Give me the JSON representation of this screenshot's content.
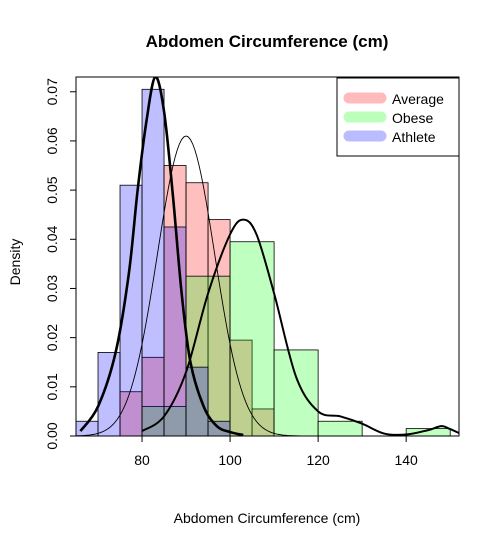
{
  "chart_data": {
    "type": "histogram",
    "title": "Abdomen Circumference (cm)",
    "xlabel": "Abdomen Circumference (cm)",
    "ylabel": "Density",
    "xlim": [
      65,
      152
    ],
    "ylim": [
      0,
      0.073
    ],
    "xticks": [
      80,
      100,
      120,
      140
    ],
    "yticks": [
      0.0,
      0.01,
      0.02,
      0.03,
      0.04,
      0.05,
      0.06,
      0.07
    ],
    "ytick_labels": [
      "0.00",
      "0.01",
      "0.02",
      "0.03",
      "0.04",
      "0.05",
      "0.06",
      "0.07"
    ],
    "legend_position": "top-right",
    "series": [
      {
        "name": "Average",
        "color": "#FF000040",
        "legend_color": "#FFBBBB",
        "bins": [
          {
            "x0": 75,
            "x1": 80,
            "density": 0.009
          },
          {
            "x0": 80,
            "x1": 85,
            "density": 0.016
          },
          {
            "x0": 85,
            "x1": 90,
            "density": 0.055
          },
          {
            "x0": 90,
            "x1": 95,
            "density": 0.0515
          },
          {
            "x0": 95,
            "x1": 100,
            "density": 0.044
          },
          {
            "x0": 100,
            "x1": 105,
            "density": 0.0195
          },
          {
            "x0": 105,
            "x1": 110,
            "density": 0.0055
          }
        ],
        "curve": {
          "type": "normal",
          "mean": 90,
          "sd": 6.5,
          "peak": 0.061
        }
      },
      {
        "name": "Obese",
        "color": "#00FF0040",
        "legend_color": "#BBFFBB",
        "bins": [
          {
            "x0": 80,
            "x1": 90,
            "density": 0.006
          },
          {
            "x0": 90,
            "x1": 100,
            "density": 0.0325
          },
          {
            "x0": 100,
            "x1": 110,
            "density": 0.0395
          },
          {
            "x0": 110,
            "x1": 120,
            "density": 0.0175
          },
          {
            "x0": 120,
            "x1": 130,
            "density": 0.003
          },
          {
            "x0": 130,
            "x1": 140,
            "density": 0.0
          },
          {
            "x0": 140,
            "x1": 150,
            "density": 0.0015
          }
        ],
        "curve": {
          "type": "kde",
          "x": [
            80,
            85,
            90,
            95,
            100,
            103,
            106,
            110,
            115,
            120,
            125,
            130,
            135,
            140,
            145,
            148,
            150,
            152
          ],
          "y": [
            0.001,
            0.004,
            0.013,
            0.029,
            0.041,
            0.044,
            0.041,
            0.029,
            0.012,
            0.005,
            0.004,
            0.0025,
            0.0005,
            0.0003,
            0.0012,
            0.002,
            0.0014,
            0.0006
          ]
        }
      },
      {
        "name": "Athlete",
        "color": "#0000FF40",
        "legend_color": "#BBBBFF",
        "bins": [
          {
            "x0": 65,
            "x1": 70,
            "density": 0.003
          },
          {
            "x0": 70,
            "x1": 75,
            "density": 0.017
          },
          {
            "x0": 75,
            "x1": 80,
            "density": 0.051
          },
          {
            "x0": 80,
            "x1": 85,
            "density": 0.0705
          },
          {
            "x0": 85,
            "x1": 90,
            "density": 0.0425
          },
          {
            "x0": 90,
            "x1": 95,
            "density": 0.014
          },
          {
            "x0": 95,
            "x1": 100,
            "density": 0.003
          }
        ],
        "curve": {
          "type": "kde",
          "x": [
            66,
            70,
            74,
            77,
            79,
            81,
            83,
            85,
            87,
            89,
            91,
            94,
            97,
            100,
            103
          ],
          "y": [
            0.001,
            0.006,
            0.017,
            0.033,
            0.05,
            0.064,
            0.073,
            0.066,
            0.049,
            0.029,
            0.015,
            0.006,
            0.002,
            0.0008,
            0.0002
          ]
        }
      }
    ]
  }
}
